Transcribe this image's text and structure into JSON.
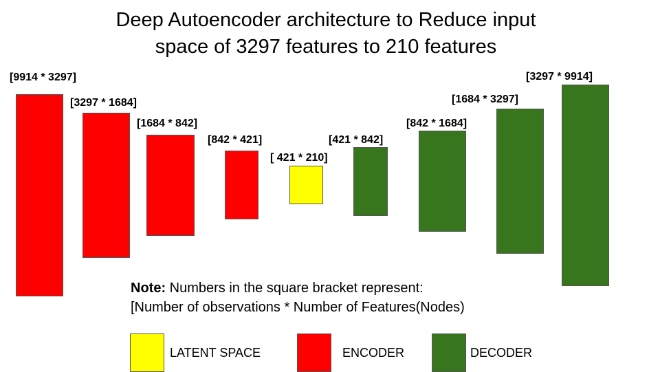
{
  "title": {
    "line1": "Deep Autoencoder architecture to Reduce input",
    "line2": "space of 3297 features to 210 features"
  },
  "colors": {
    "encoder": "#ff0000",
    "latent": "#ffff00",
    "decoder": "#38761d"
  },
  "layers": [
    {
      "label": "[9914 * 3297]",
      "role": "encoder"
    },
    {
      "label": "[3297 * 1684]",
      "role": "encoder"
    },
    {
      "label": "[1684 * 842]",
      "role": "encoder"
    },
    {
      "label": "[842 * 421]",
      "role": "encoder"
    },
    {
      "label": "[ 421 * 210]",
      "role": "latent"
    },
    {
      "label": "[421 * 842]",
      "role": "decoder"
    },
    {
      "label": "[842 * 1684]",
      "role": "decoder"
    },
    {
      "label": "[1684 * 3297]",
      "role": "decoder"
    },
    {
      "label": "[3297 * 9914]",
      "role": "decoder"
    }
  ],
  "note": {
    "prefix": "Note:",
    "line1": " Numbers in the square bracket represent:",
    "line2": "[Number of observations * Number of Features(Nodes)"
  },
  "legend": [
    {
      "label": "LATENT SPACE",
      "role": "latent"
    },
    {
      "label": "ENCODER",
      "role": "encoder"
    },
    {
      "label": "DECODER",
      "role": "decoder"
    }
  ]
}
